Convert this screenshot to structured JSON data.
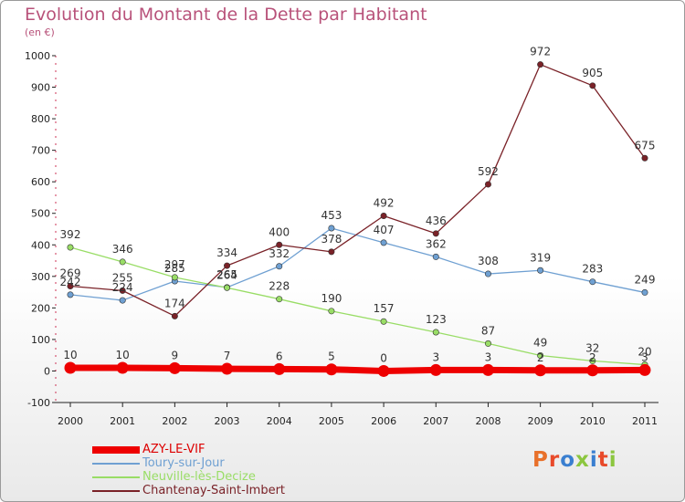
{
  "header": {
    "title": "Evolution du Montant de la Dette par Habitant",
    "subtitle": "(en €)"
  },
  "logo": {
    "text": "Proxiti",
    "colors": [
      "#e8702a",
      "#e84a2a",
      "#3a7fd0",
      "#8cc63f",
      "#3a7fd0",
      "#e84a2a",
      "#8cc63f"
    ]
  },
  "chart_data": {
    "type": "line",
    "title": "Evolution du Montant de la Dette par Habitant",
    "subtitle": "(en €)",
    "xlabel": "",
    "ylabel": "",
    "categories": [
      "2000",
      "2001",
      "2002",
      "2003",
      "2004",
      "2005",
      "2006",
      "2007",
      "2008",
      "2009",
      "2010",
      "2011"
    ],
    "ylim": [
      -100,
      1000
    ],
    "yticks": [
      -100,
      0,
      100,
      200,
      300,
      400,
      500,
      600,
      700,
      800,
      900,
      1000
    ],
    "grid": false,
    "legend_position": "bottom-left",
    "series": [
      {
        "name": "AZY-LE-VIF",
        "color": "#ee0000",
        "thick": true,
        "values": [
          10,
          10,
          9,
          7,
          6,
          5,
          0,
          3,
          3,
          2,
          2,
          3
        ],
        "labels": [
          "10",
          "10",
          "9",
          "7",
          "6",
          "5",
          "0",
          "3",
          "3",
          "2",
          "2",
          "3"
        ]
      },
      {
        "name": "Toury-sur-Jour",
        "color": "#6fa0d2",
        "thick": false,
        "values": [
          242,
          224,
          285,
          265,
          332,
          453,
          407,
          362,
          308,
          319,
          283,
          249
        ],
        "labels": [
          "242",
          "224",
          "285",
          "265",
          "332",
          "453",
          "407",
          "362",
          "308",
          "319",
          "283",
          "249"
        ]
      },
      {
        "name": "Neuville-lès-Decize",
        "color": "#99dd66",
        "thick": false,
        "values": [
          392,
          346,
          297,
          264,
          228,
          190,
          157,
          123,
          87,
          49,
          32,
          20
        ],
        "labels": [
          "392",
          "346",
          "297",
          "264",
          "228",
          "190",
          "157",
          "123",
          "87",
          "49",
          "32",
          "20"
        ]
      },
      {
        "name": "Chantenay-Saint-Imbert",
        "color": "#7a2228",
        "thick": false,
        "values": [
          269,
          255,
          174,
          334,
          400,
          378,
          492,
          436,
          592,
          972,
          905,
          675
        ],
        "labels": [
          "269",
          "255",
          "174",
          "334",
          "400",
          "378",
          "492",
          "436",
          "592",
          "972",
          "905",
          "675"
        ]
      }
    ]
  }
}
